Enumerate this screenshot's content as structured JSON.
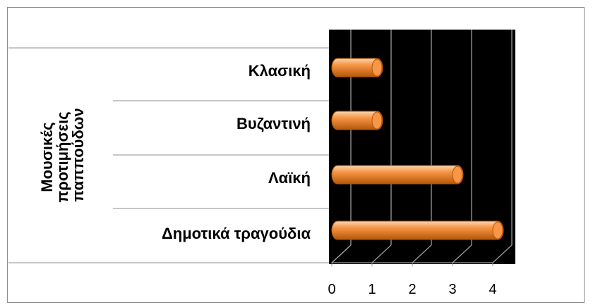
{
  "chart_data": {
    "type": "bar",
    "orientation": "horizontal",
    "style": "3d-cylinder",
    "ylabel_lines": [
      "Μουσικές",
      "προτιμήσεις",
      "παππούδων"
    ],
    "categories": [
      "Κλασική",
      "Βυζαντινή",
      "Λαϊκή",
      "Δημοτικά τραγούδια"
    ],
    "values": [
      1,
      1,
      3,
      4
    ],
    "xticks": [
      "0",
      "1",
      "2",
      "3",
      "4"
    ],
    "xlim": [
      0,
      4
    ],
    "grid": true,
    "legend": "none",
    "colors": {
      "bar": "#f79646",
      "bar_light": "#fcd5b0",
      "bar_dark": "#b65708",
      "plot_background": "#000000",
      "gridline": "#999999"
    }
  }
}
